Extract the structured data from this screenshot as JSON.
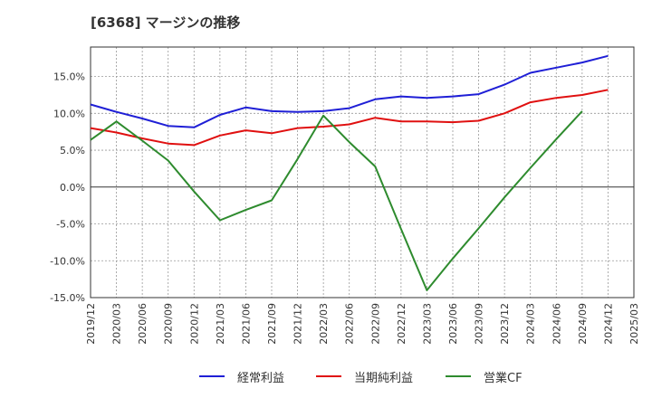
{
  "title": "[6368]  マージンの推移",
  "chart_data": {
    "type": "line",
    "title": "[6368]  マージンの推移",
    "x": [
      "2019/12",
      "2020/03",
      "2020/06",
      "2020/09",
      "2020/12",
      "2021/03",
      "2021/06",
      "2021/09",
      "2021/12",
      "2022/03",
      "2022/06",
      "2022/09",
      "2022/12",
      "2023/03",
      "2023/06",
      "2023/09",
      "2023/12",
      "2024/03",
      "2024/06",
      "2024/09",
      "2024/12",
      "2025/03"
    ],
    "y_ticks": [
      "-15.0%",
      "-10.0%",
      "-5.0%",
      "0.0%",
      "5.0%",
      "10.0%",
      "15.0%"
    ],
    "y_tick_values": [
      -15,
      -10,
      -5,
      0,
      5,
      10,
      15
    ],
    "ylim": [
      -15,
      19
    ],
    "grid": true,
    "legend_position": "bottom",
    "series": [
      {
        "name": "経常利益",
        "color": "#1f1fd6",
        "values": [
          11.2,
          10.2,
          9.3,
          8.3,
          8.1,
          9.8,
          10.8,
          10.3,
          10.2,
          10.3,
          10.7,
          11.9,
          12.3,
          12.1,
          12.3,
          12.6,
          13.9,
          15.5,
          16.2,
          16.9,
          17.8,
          null
        ]
      },
      {
        "name": "当期純利益",
        "color": "#e01010",
        "values": [
          8.0,
          7.4,
          6.6,
          5.9,
          5.7,
          7.0,
          7.7,
          7.3,
          8.0,
          8.2,
          8.5,
          9.4,
          8.9,
          8.9,
          8.8,
          9.0,
          10.0,
          11.5,
          12.1,
          12.5,
          13.2,
          null
        ]
      },
      {
        "name": "営業CF",
        "color": "#2e8b2e",
        "values": [
          6.4,
          8.9,
          6.3,
          3.6,
          -0.6,
          -4.5,
          -3.1,
          -1.8,
          3.8,
          9.7,
          6.1,
          2.8,
          -5.7,
          -14.0,
          -9.7,
          -5.6,
          -1.4,
          2.6,
          6.5,
          10.3,
          null,
          null
        ]
      }
    ]
  }
}
